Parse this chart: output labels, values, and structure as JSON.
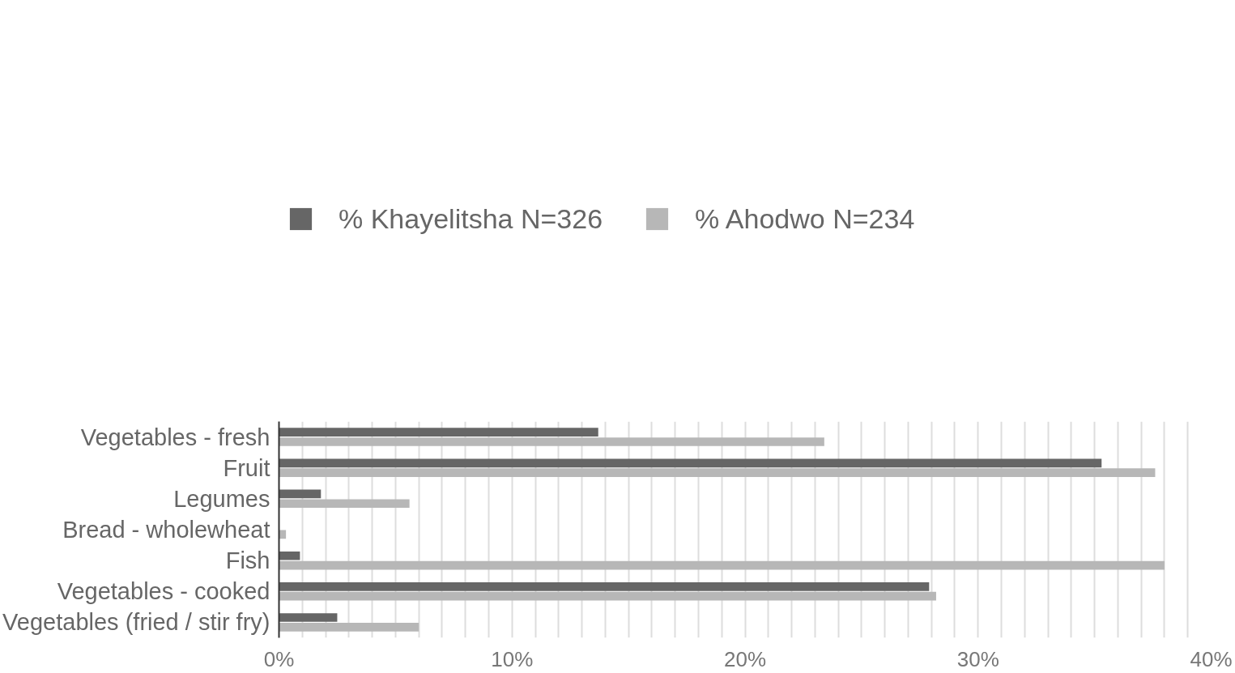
{
  "chart_data": {
    "type": "bar",
    "orientation": "horizontal",
    "categories": [
      "Vegetables - fresh",
      "Fruit",
      "Legumes",
      "Bread - wholewheat",
      "Fish",
      "Vegetables - cooked",
      "Vegetables (fried / stir fry)"
    ],
    "series": [
      {
        "name": "% Khayelitsha N=326",
        "color": "#666666",
        "values": [
          13.7,
          35.3,
          1.8,
          null,
          0.9,
          27.9,
          2.5
        ]
      },
      {
        "name": "% Ahodwo N=234",
        "color": "#b7b7b7",
        "values": [
          23.4,
          37.6,
          5.6,
          0.3,
          38.0,
          28.2,
          6.0
        ]
      }
    ],
    "xlim": [
      0,
      40
    ],
    "xticks": [
      {
        "value": 0,
        "label": "0%"
      },
      {
        "value": 1,
        "label": null
      },
      {
        "value": 2,
        "label": null
      },
      {
        "value": 3,
        "label": null
      },
      {
        "value": 4,
        "label": null
      },
      {
        "value": 5,
        "label": null
      },
      {
        "value": 6,
        "label": null
      },
      {
        "value": 7,
        "label": null
      },
      {
        "value": 8,
        "label": null
      },
      {
        "value": 9,
        "label": null
      },
      {
        "value": 10,
        "label": "10%"
      },
      {
        "value": 11,
        "label": null
      },
      {
        "value": 12,
        "label": null
      },
      {
        "value": 13,
        "label": null
      },
      {
        "value": 14,
        "label": null
      },
      {
        "value": 15,
        "label": null
      },
      {
        "value": 16,
        "label": null
      },
      {
        "value": 17,
        "label": null
      },
      {
        "value": 18,
        "label": null
      },
      {
        "value": 19,
        "label": null
      },
      {
        "value": 20,
        "label": "20%"
      },
      {
        "value": 21,
        "label": null
      },
      {
        "value": 22,
        "label": null
      },
      {
        "value": 23,
        "label": null
      },
      {
        "value": 24,
        "label": null
      },
      {
        "value": 25,
        "label": null
      },
      {
        "value": 26,
        "label": null
      },
      {
        "value": 27,
        "label": null
      },
      {
        "value": 28,
        "label": null
      },
      {
        "value": 29,
        "label": null
      },
      {
        "value": 30,
        "label": "30%"
      },
      {
        "value": 31,
        "label": null
      },
      {
        "value": 32,
        "label": null
      },
      {
        "value": 33,
        "label": null
      },
      {
        "value": 34,
        "label": null
      },
      {
        "value": 35,
        "label": null
      },
      {
        "value": 36,
        "label": null
      },
      {
        "value": 37,
        "label": null
      },
      {
        "value": 38,
        "label": null
      },
      {
        "value": 39,
        "label": null
      },
      {
        "value": 40,
        "label": "40%"
      }
    ],
    "grid": "x",
    "legend": "top"
  }
}
